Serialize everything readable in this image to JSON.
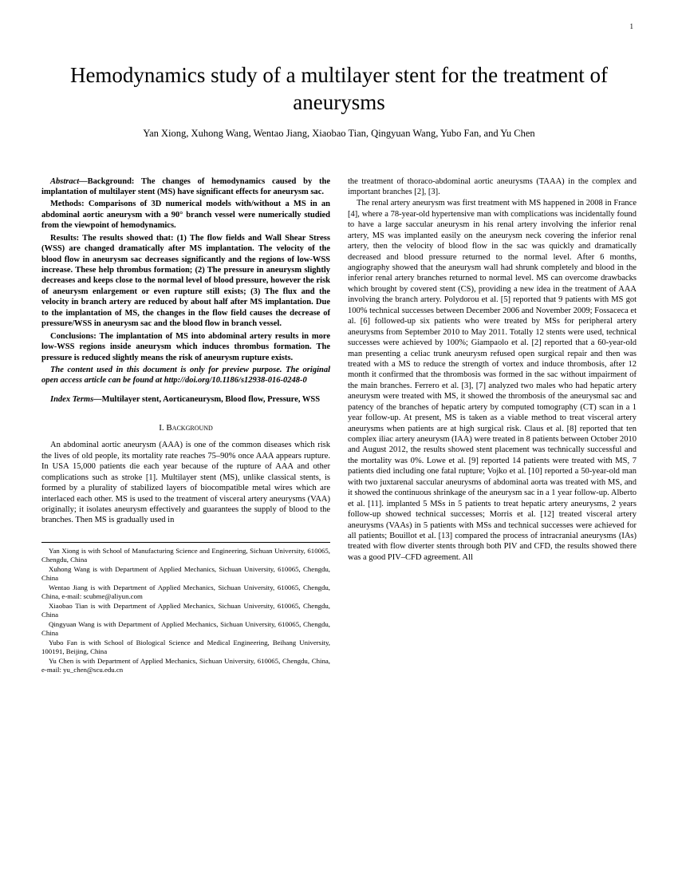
{
  "page_number": "1",
  "title": "Hemodynamics study of a multilayer stent for the treatment of aneurysms",
  "authors": "Yan Xiong, Xuhong Wang, Wentao Jiang, Xiaobao Tian, Qingyuan Wang, Yubo Fan, and Yu Chen",
  "abstract": {
    "label": "Abstract—",
    "background_label": "Background: ",
    "background": "The changes of hemodynamics caused by the implantation of multilayer stent (MS) have significant effects for aneurysm sac.",
    "methods_label": "Methods: ",
    "methods": "Comparisons of 3D numerical models with/without a MS in an abdominal aortic aneurysm with a 90° branch vessel were numerically studied from the viewpoint of hemodynamics.",
    "results_label": "Results: ",
    "results": "The results showed that: (1) The flow fields and Wall Shear Stress (WSS) are changed dramatically after MS implantation. The velocity of the blood flow in aneurysm sac decreases significantly and the regions of low-WSS increase. These help thrombus formation; (2) The pressure in aneurysm slightly decreases and keeps close to the normal level of blood pressure, however the risk of aneurysm enlargement or even rupture still exists; (3) The flux and the velocity in branch artery are reduced by about half after MS implantation. Due to the implantation of MS, the changes in the flow field causes the decrease of pressure/WSS in aneurysm sac and the blood flow in branch vessel.",
    "conclusions_label": "Conclusions: ",
    "conclusions": "The implantation of MS into abdominal artery results in more low-WSS regions inside aneurysm which induces thrombus formation. The pressure is reduced slightly means the risk of aneurysm rupture exists.",
    "preview_note": "The content used in this document is only for preview purpose. The original open access article can be found at http://doi.org/10.1186/s12938-016-0248-0"
  },
  "index_terms": {
    "label": "Index Terms—",
    "text": "Multilayer stent, Aorticaneurysm, Blood flow, Pressure, WSS"
  },
  "section1_heading": "I. Background",
  "body_left": "An abdominal aortic aneurysm (AAA) is one of the common diseases which risk the lives of old people, its mortality rate reaches 75–90% once AAA appears rupture. In USA 15,000 patients die each year because of the rupture of AAA and other complications such as stroke [1]. Multilayer stent (MS), unlike classical stents, is formed by a plurality of stabilized layers of biocompatible metal wires which are interlaced each other. MS is used to the treatment of visceral artery aneurysms (VAA) originally; it isolates aneurysm effectively and guarantees the supply of blood to the branches. Then MS is gradually used in",
  "body_right_1": "the treatment of thoraco-abdominal aortic aneurysms (TAAA) in the complex and important branches [2], [3].",
  "body_right_2": "The renal artery aneurysm was first treatment with MS happened in 2008 in France [4], where a 78-year-old hypertensive man with complications was incidentally found to have a large saccular aneurysm in his renal artery involving the inferior renal artery, MS was implanted easily on the aneurysm neck covering the inferior renal artery, then the velocity of blood flow in the sac was quickly and dramatically decreased and blood pressure returned to the normal level. After 6 months, angiography showed that the aneurysm wall had shrunk completely and blood in the inferior renal artery branches returned to normal level. MS can overcome drawbacks which brought by covered stent (CS), providing a new idea in the treatment of AAA involving the branch artery. Polydorou et al. [5] reported that 9 patients with MS got 100% technical successes between December 2006 and November 2009; Fossaceca et al. [6] followed-up six patients who were treated by MSs for peripheral artery aneurysms from September 2010 to May 2011. Totally 12 stents were used, technical successes were achieved by 100%; Giampaolo et al. [2] reported that a 60-year-old man presenting a celiac trunk aneurysm refused open surgical repair and then was treated with a MS to reduce the strength of vortex and induce thrombosis, after 12 month it confirmed that the thrombosis was formed in the sac without impairment of the main branches. Ferrero et al. [3], [7] analyzed two males who had hepatic artery aneurysm were treated with MS, it showed the thrombosis of the aneurysmal sac and patency of the branches of hepatic artery by computed tomography (CT) scan in a 1 year follow-up. At present, MS is taken as a viable method to treat visceral artery aneurysms when patients are at high surgical risk. Claus et al. [8] reported that ten complex iliac artery aneurysm (IAA) were treated in 8 patients between October 2010 and August 2012, the results showed stent placement was technically successful and the mortality was 0%. Lowe et al. [9] reported 14 patients were treated with MS, 7 patients died including one fatal rupture; Vojko et al. [10] reported a 50-year-old man with two juxtarenal saccular aneurysms of abdominal aorta was treated with MS, and it showed the continuous shrinkage of the aneurysm sac in a 1 year follow-up. Alberto et al. [11]. implanted 5 MSs in 5 patients to treat hepatic artery aneurysms, 2 years follow-up showed technical successes; Morris et al. [12] treated visceral artery aneurysms (VAAs) in 5 patients with MSs and technical successes were achieved for all patients; Bouillot et al. [13] compared the process of intracranial aneurysms (IAs) treated with flow diverter stents through both PIV and CFD, the results showed there was a good PIV–CFD agreement. All",
  "footnotes": [
    "Yan Xiong is with School of Manufacturing Science and Engineering, Sichuan University, 610065, Chengdu, China",
    "Xuhong Wang is with Department of Applied Mechanics, Sichuan University, 610065, Chengdu, China",
    "Wentao Jiang is with Department of Applied Mechanics, Sichuan University, 610065, Chengdu, China, e-mail: scubme@aliyun.com",
    "Xiaobao Tian is with Department of Applied Mechanics, Sichuan University, 610065, Chengdu, China",
    "Qingyuan Wang is with Department of Applied Mechanics, Sichuan University, 610065, Chengdu, China",
    "Yubo Fan is with School of Biological Science and Medical Engineering, Beihang University, 100191, Beijing, China",
    "Yu Chen is with Department of Applied Mechanics, Sichuan University, 610065, Chengdu, China, e-mail: yu_chen@scu.edu.cn"
  ]
}
